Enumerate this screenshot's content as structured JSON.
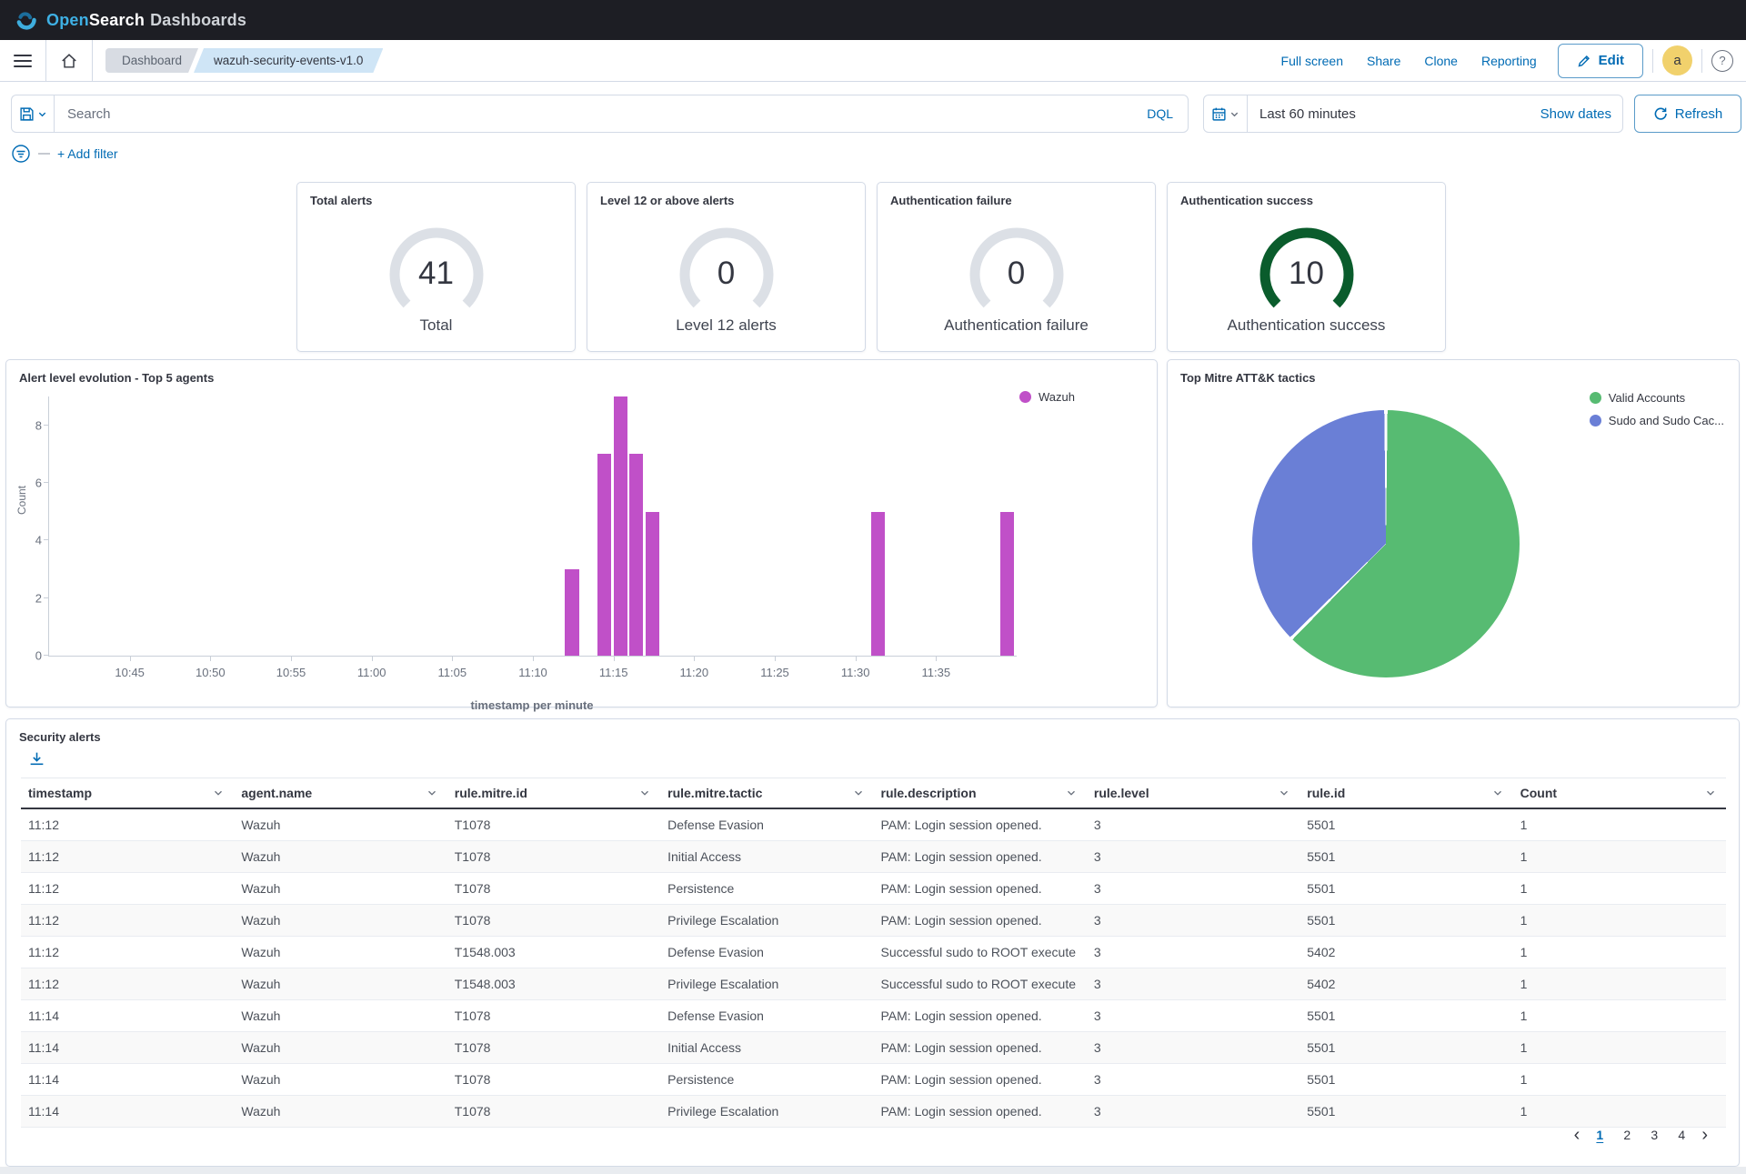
{
  "header": {
    "logo_open": "Open",
    "logo_search": "Search",
    "logo_suffix": "Dashboards"
  },
  "nav": {
    "breadcrumbs": [
      {
        "label": "Dashboard"
      },
      {
        "label": "wazuh-security-events-v1.0"
      }
    ],
    "actions": [
      "Full screen",
      "Share",
      "Clone",
      "Reporting"
    ],
    "edit_label": "Edit",
    "avatar_letter": "a",
    "help_glyph": "?"
  },
  "search": {
    "placeholder": "Search",
    "dql_label": "DQL",
    "time_range": "Last 60 minutes",
    "show_dates_label": "Show dates",
    "refresh_label": "Refresh"
  },
  "filter_bar": {
    "add_filter_label": "+ Add filter"
  },
  "metric_cards": [
    {
      "title": "Total alerts",
      "value": "41",
      "label": "Total",
      "arc_color": "#dce0e6"
    },
    {
      "title": "Level 12 or above alerts",
      "value": "0",
      "label": "Level 12 alerts",
      "arc_color": "#dce0e6"
    },
    {
      "title": "Authentication failure",
      "value": "0",
      "label": "Authentication failure",
      "arc_color": "#dce0e6"
    },
    {
      "title": "Authentication success",
      "value": "10",
      "label": "Authentication success",
      "arc_color": "#0a5c2c"
    }
  ],
  "chart_data": [
    {
      "type": "bar",
      "title": "Alert level evolution - Top 5 agents",
      "xlabel": "timestamp per minute",
      "ylabel": "Count",
      "x_range": [
        "10:40",
        "11:40"
      ],
      "x_ticks": [
        "10:45",
        "10:50",
        "10:55",
        "11:00",
        "11:05",
        "11:10",
        "11:15",
        "11:20",
        "11:25",
        "11:30",
        "11:35"
      ],
      "y_ticks": [
        0,
        2,
        4,
        6,
        8
      ],
      "ylim": [
        0,
        9
      ],
      "legend_position": "top-right",
      "series": [
        {
          "name": "Wazuh",
          "color": "#c050c8",
          "points": [
            {
              "x": "11:12",
              "y": 3
            },
            {
              "x": "11:14",
              "y": 7
            },
            {
              "x": "11:15",
              "y": 9
            },
            {
              "x": "11:16",
              "y": 7
            },
            {
              "x": "11:17",
              "y": 5
            },
            {
              "x": "11:31",
              "y": 5
            },
            {
              "x": "11:39",
              "y": 5
            }
          ]
        }
      ]
    },
    {
      "type": "pie",
      "title": "Top Mitre ATT&K tactics",
      "legend_position": "top-right",
      "slices": [
        {
          "label": "Valid Accounts",
          "percent": 62.5,
          "color": "#57bb72"
        },
        {
          "label": "Sudo and Sudo Cac...",
          "percent": 37.5,
          "color": "#6a7fd6"
        }
      ]
    }
  ],
  "table_panel": {
    "title": "Security alerts",
    "columns": [
      "timestamp",
      "agent.name",
      "rule.mitre.id",
      "rule.mitre.tactic",
      "rule.description",
      "rule.level",
      "rule.id",
      "Count"
    ],
    "rows": [
      [
        "11:12",
        "Wazuh",
        "T1078",
        "Defense Evasion",
        "PAM: Login session opened.",
        "3",
        "5501",
        "1"
      ],
      [
        "11:12",
        "Wazuh",
        "T1078",
        "Initial Access",
        "PAM: Login session opened.",
        "3",
        "5501",
        "1"
      ],
      [
        "11:12",
        "Wazuh",
        "T1078",
        "Persistence",
        "PAM: Login session opened.",
        "3",
        "5501",
        "1"
      ],
      [
        "11:12",
        "Wazuh",
        "T1078",
        "Privilege Escalation",
        "PAM: Login session opened.",
        "3",
        "5501",
        "1"
      ],
      [
        "11:12",
        "Wazuh",
        "T1548.003",
        "Defense Evasion",
        "Successful sudo to ROOT execute",
        "3",
        "5402",
        "1"
      ],
      [
        "11:12",
        "Wazuh",
        "T1548.003",
        "Privilege Escalation",
        "Successful sudo to ROOT execute",
        "3",
        "5402",
        "1"
      ],
      [
        "11:14",
        "Wazuh",
        "T1078",
        "Defense Evasion",
        "PAM: Login session opened.",
        "3",
        "5501",
        "1"
      ],
      [
        "11:14",
        "Wazuh",
        "T1078",
        "Initial Access",
        "PAM: Login session opened.",
        "3",
        "5501",
        "1"
      ],
      [
        "11:14",
        "Wazuh",
        "T1078",
        "Persistence",
        "PAM: Login session opened.",
        "3",
        "5501",
        "1"
      ],
      [
        "11:14",
        "Wazuh",
        "T1078",
        "Privilege Escalation",
        "PAM: Login session opened.",
        "3",
        "5501",
        "1"
      ]
    ],
    "pagination": {
      "prev_glyph": "‹",
      "next_glyph": "›",
      "pages": [
        "1",
        "2",
        "3",
        "4"
      ],
      "active": "1"
    }
  }
}
